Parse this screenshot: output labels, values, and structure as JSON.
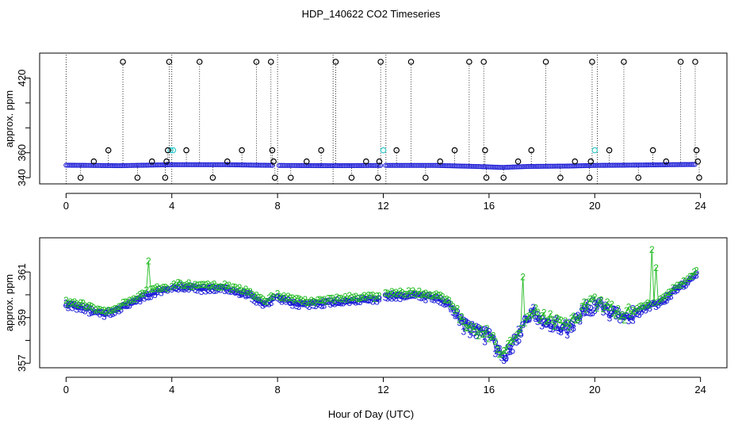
{
  "title": "HDP_140622  CO2 Timeseries",
  "xlabel": "Hour of Day (UTC)",
  "chart_data": [
    {
      "type": "scatter",
      "panel": "top",
      "ylabel": "approx. ppm",
      "xlim": [
        -1,
        25
      ],
      "ylim": [
        335,
        440
      ],
      "xticks": [
        "0",
        "4",
        "8",
        "12",
        "16",
        "20",
        "24"
      ],
      "yticks": [
        "340",
        "360",
        "380",
        "400",
        "420"
      ],
      "ytick_labels_shown": [
        "340",
        "360",
        "420"
      ],
      "colors": {
        "main": "#1a1ad6",
        "highlight": "#33cccc",
        "outlier": "#000000"
      },
      "baseline_profile": [
        [
          0.0,
          350.0
        ],
        [
          2.0,
          349.6
        ],
        [
          4.0,
          350.4
        ],
        [
          6.0,
          350.4
        ],
        [
          8.0,
          349.8
        ],
        [
          10.0,
          349.6
        ],
        [
          12.0,
          349.8
        ],
        [
          14.0,
          349.8
        ],
        [
          15.5,
          349.0
        ],
        [
          16.5,
          348.2
        ],
        [
          17.5,
          349.0
        ],
        [
          19.0,
          349.3
        ],
        [
          20.0,
          349.8
        ],
        [
          22.0,
          350.2
        ],
        [
          23.8,
          350.6
        ]
      ],
      "gaps": [
        [
          7.85,
          8.0
        ],
        [
          11.9,
          12.05
        ]
      ],
      "highlight_points": [
        [
          3.95,
          362
        ],
        [
          4.05,
          362
        ],
        [
          12.0,
          362
        ],
        [
          20.0,
          362
        ]
      ],
      "outliers": [
        {
          "x": 0.55,
          "y": 340
        },
        {
          "x": 1.05,
          "y": 353
        },
        {
          "x": 1.6,
          "y": 362
        },
        {
          "x": 2.15,
          "y": 433
        },
        {
          "x": 2.7,
          "y": 340
        },
        {
          "x": 3.25,
          "y": 353
        },
        {
          "x": 3.75,
          "y": 340
        },
        {
          "x": 3.8,
          "y": 353
        },
        {
          "x": 3.85,
          "y": 362
        },
        {
          "x": 3.9,
          "y": 433
        },
        {
          "x": 4.55,
          "y": 362
        },
        {
          "x": 5.05,
          "y": 433
        },
        {
          "x": 5.55,
          "y": 340
        },
        {
          "x": 6.1,
          "y": 353
        },
        {
          "x": 6.65,
          "y": 362
        },
        {
          "x": 7.2,
          "y": 433
        },
        {
          "x": 7.75,
          "y": 433
        },
        {
          "x": 7.8,
          "y": 362
        },
        {
          "x": 7.85,
          "y": 353
        },
        {
          "x": 7.9,
          "y": 340
        },
        {
          "x": 8.5,
          "y": 340
        },
        {
          "x": 9.1,
          "y": 353
        },
        {
          "x": 9.65,
          "y": 362
        },
        {
          "x": 10.2,
          "y": 433
        },
        {
          "x": 10.8,
          "y": 340
        },
        {
          "x": 11.35,
          "y": 353
        },
        {
          "x": 11.8,
          "y": 340
        },
        {
          "x": 11.85,
          "y": 353
        },
        {
          "x": 11.9,
          "y": 433
        },
        {
          "x": 12.5,
          "y": 362
        },
        {
          "x": 13.05,
          "y": 433
        },
        {
          "x": 13.6,
          "y": 340
        },
        {
          "x": 14.15,
          "y": 353
        },
        {
          "x": 14.7,
          "y": 362
        },
        {
          "x": 15.25,
          "y": 433
        },
        {
          "x": 15.8,
          "y": 433
        },
        {
          "x": 15.85,
          "y": 362
        },
        {
          "x": 15.9,
          "y": 340
        },
        {
          "x": 16.55,
          "y": 340
        },
        {
          "x": 17.1,
          "y": 353
        },
        {
          "x": 17.6,
          "y": 362
        },
        {
          "x": 18.15,
          "y": 433
        },
        {
          "x": 18.7,
          "y": 340
        },
        {
          "x": 19.25,
          "y": 353
        },
        {
          "x": 19.8,
          "y": 340
        },
        {
          "x": 19.85,
          "y": 353
        },
        {
          "x": 19.9,
          "y": 433
        },
        {
          "x": 20.55,
          "y": 362
        },
        {
          "x": 21.1,
          "y": 433
        },
        {
          "x": 21.65,
          "y": 340
        },
        {
          "x": 22.2,
          "y": 362
        },
        {
          "x": 22.7,
          "y": 353
        },
        {
          "x": 23.25,
          "y": 433
        },
        {
          "x": 23.8,
          "y": 433
        },
        {
          "x": 23.85,
          "y": 362
        },
        {
          "x": 23.9,
          "y": 353
        },
        {
          "x": 23.95,
          "y": 340
        }
      ],
      "dotted_spikes": [
        0.0,
        4.0,
        8.0,
        10.1,
        12.1,
        20.1
      ]
    },
    {
      "type": "scatter",
      "panel": "bottom",
      "ylabel": "approx. ppm",
      "xlim": [
        -1,
        25
      ],
      "ylim": [
        356.8,
        362.5
      ],
      "xticks": [
        "0",
        "4",
        "8",
        "12",
        "16",
        "20",
        "24"
      ],
      "yticks": [
        "357",
        "358",
        "359",
        "360",
        "361"
      ],
      "ytick_labels_shown": [
        "357",
        "359",
        "361"
      ],
      "series": [
        {
          "marker": "o",
          "color": "#1a1ad6"
        },
        {
          "marker": "2",
          "color": "#22bb22"
        },
        {
          "marker": "3",
          "color": "#1a1ad6"
        }
      ],
      "profile": [
        [
          0.0,
          359.6
        ],
        [
          0.5,
          359.5
        ],
        [
          1.0,
          359.3
        ],
        [
          1.5,
          359.2
        ],
        [
          2.0,
          359.4
        ],
        [
          2.5,
          359.7
        ],
        [
          3.0,
          360.0
        ],
        [
          3.5,
          360.2
        ],
        [
          3.9,
          360.2
        ],
        [
          4.2,
          360.4
        ],
        [
          5.0,
          360.3
        ],
        [
          6.0,
          360.3
        ],
        [
          7.0,
          360.0
        ],
        [
          7.5,
          359.6
        ],
        [
          7.85,
          359.9
        ],
        [
          8.0,
          359.9
        ],
        [
          8.5,
          359.7
        ],
        [
          9.0,
          359.6
        ],
        [
          10.0,
          359.7
        ],
        [
          11.0,
          359.8
        ],
        [
          11.9,
          359.8
        ],
        [
          12.0,
          360.0
        ],
        [
          13.0,
          360.0
        ],
        [
          14.0,
          359.9
        ],
        [
          14.5,
          359.6
        ],
        [
          15.0,
          358.7
        ],
        [
          15.5,
          358.4
        ],
        [
          16.0,
          358.2
        ],
        [
          16.3,
          357.6
        ],
        [
          16.6,
          357.3
        ],
        [
          17.0,
          358.0
        ],
        [
          17.3,
          358.6
        ],
        [
          17.6,
          359.3
        ],
        [
          18.0,
          359.0
        ],
        [
          18.5,
          358.7
        ],
        [
          19.0,
          358.6
        ],
        [
          19.3,
          358.9
        ],
        [
          19.6,
          359.4
        ],
        [
          20.0,
          359.6
        ],
        [
          20.5,
          359.4
        ],
        [
          21.0,
          359.0
        ],
        [
          21.5,
          359.2
        ],
        [
          22.0,
          359.5
        ],
        [
          22.5,
          359.7
        ],
        [
          23.0,
          360.2
        ],
        [
          23.5,
          360.6
        ],
        [
          23.8,
          360.9
        ]
      ],
      "gaps": [
        [
          3.85,
          4.0
        ],
        [
          7.85,
          8.0
        ],
        [
          11.9,
          12.05
        ]
      ],
      "spikes": [
        {
          "x": 3.1,
          "y": 361.5
        },
        {
          "x": 17.25,
          "y": 360.8
        },
        {
          "x": 22.15,
          "y": 362.0
        },
        {
          "x": 22.3,
          "y": 361.2
        }
      ]
    }
  ]
}
